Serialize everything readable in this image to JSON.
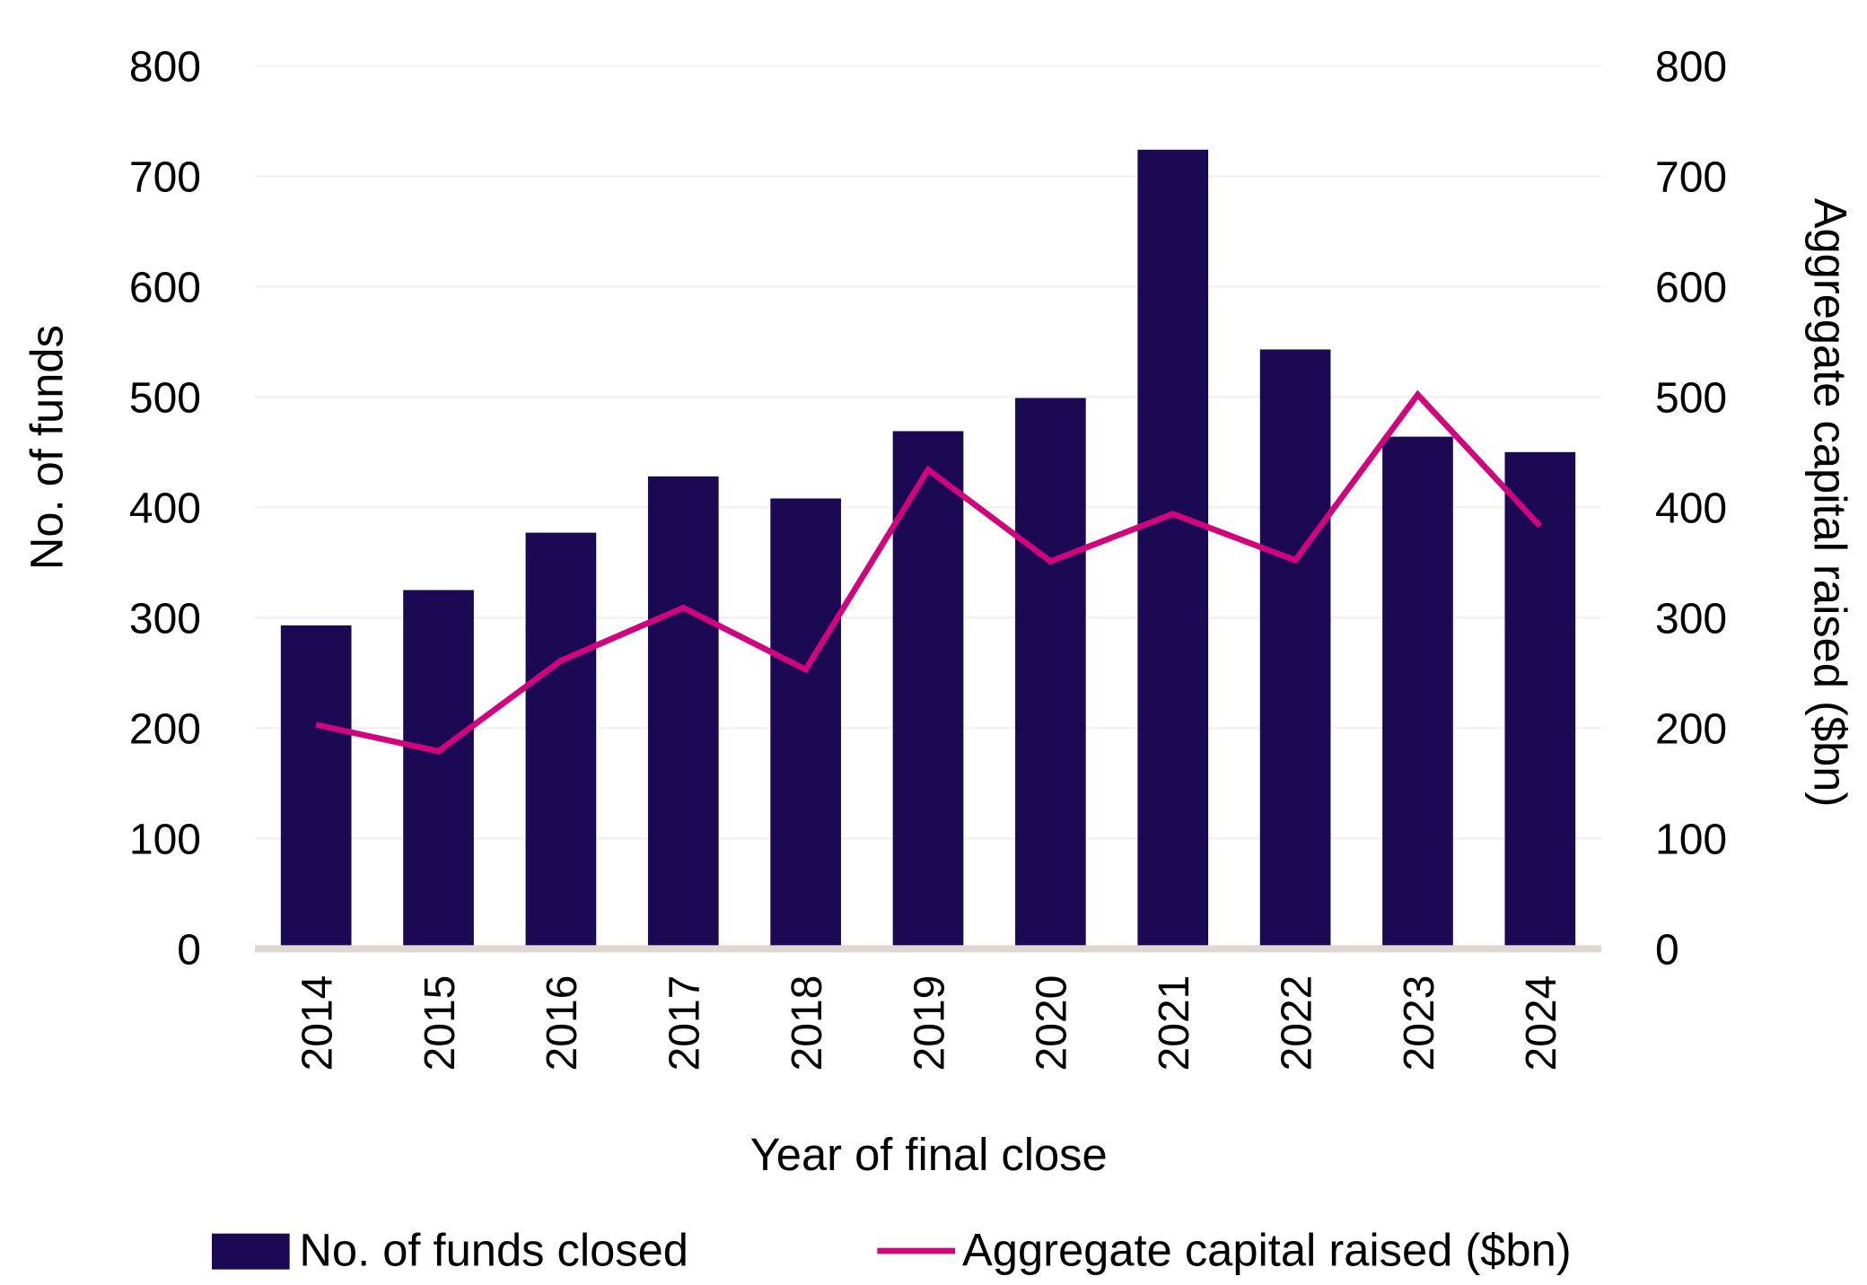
{
  "chart_data": {
    "type": "bar",
    "title": "",
    "xlabel": "Year of final close",
    "ylabel": "No. of funds",
    "y2label": "Aggregate capital raised ($bn)",
    "categories": [
      "2014",
      "2015",
      "2016",
      "2017",
      "2018",
      "2019",
      "2020",
      "2021",
      "2022",
      "2023",
      "2024"
    ],
    "series": [
      {
        "name": "No. of funds closed",
        "type": "bar",
        "axis": "left",
        "color": "#1b0954",
        "values": [
          293,
          325,
          377,
          428,
          408,
          469,
          499,
          724,
          543,
          464,
          450
        ]
      },
      {
        "name": "Aggregate capital raised ($bn)",
        "type": "line",
        "axis": "right",
        "color": "#d0047c",
        "values": [
          203,
          179,
          261,
          309,
          253,
          434,
          351,
          394,
          352,
          502,
          383
        ]
      }
    ],
    "ylim": [
      0,
      800
    ],
    "y2lim": [
      0,
      800
    ],
    "yticks": [
      "0",
      "100",
      "200",
      "300",
      "400",
      "500",
      "600",
      "700",
      "800"
    ],
    "y2ticks": [
      "0",
      "100",
      "200",
      "300",
      "400",
      "500",
      "600",
      "700",
      "800"
    ],
    "grid": true,
    "legend_position": "bottom"
  },
  "legend": {
    "bar_label": "No. of funds closed",
    "line_label": "Aggregate capital raised ($bn)"
  },
  "colors": {
    "bar": "#1b0954",
    "line": "#d0047c",
    "grid": "#efefef",
    "baseline": "#ddd8d3"
  }
}
